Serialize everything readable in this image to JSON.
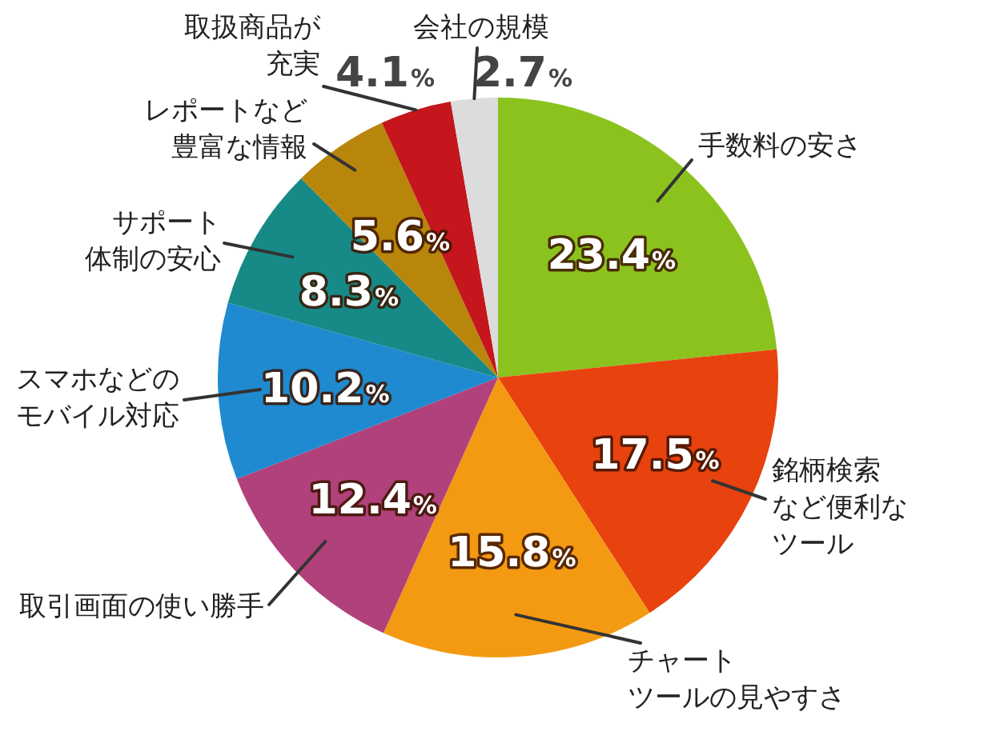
{
  "chart_data": {
    "type": "pie",
    "categories": [
      "手数料の安さ",
      "銘柄検索など便利なツール",
      "チャートツールの見やすさ",
      "取引画面の使い勝手",
      "スマホなどのモバイル対応",
      "サポート体制の安心",
      "レポートなど豊富な情報",
      "取扱商品が充実",
      "会社の規模"
    ],
    "values": [
      23.4,
      17.5,
      15.8,
      12.4,
      10.2,
      8.3,
      5.6,
      4.1,
      2.7
    ],
    "colors": [
      "#8cc21e",
      "#e8420f",
      "#f39a12",
      "#b0417a",
      "#1f8ad0",
      "#178a87",
      "#b8860b",
      "#c4161c",
      "#dcdcdc"
    ],
    "value_labels": [
      "23.4%",
      "17.5%",
      "15.8%",
      "12.4%",
      "10.2%",
      "8.3%",
      "5.6%",
      "4.1%",
      "2.7%"
    ],
    "legend": false
  }
}
